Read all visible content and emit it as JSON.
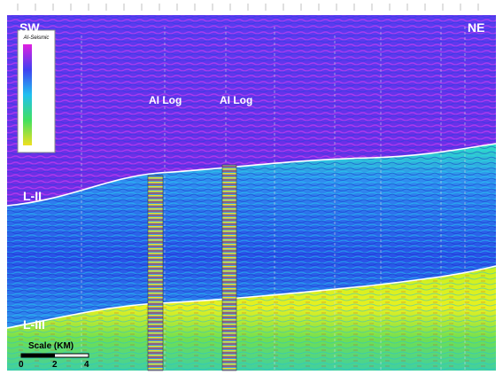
{
  "labels": {
    "left": "SW",
    "right": "NE",
    "logs": [
      "AI Log",
      "AI Log"
    ],
    "horizons": [
      "L-II",
      "L-III"
    ]
  },
  "legend": {
    "title": "AI-Seismic"
  },
  "scale": {
    "title": "Scale (KM)",
    "ticks": [
      "0",
      "2",
      "4"
    ]
  }
}
